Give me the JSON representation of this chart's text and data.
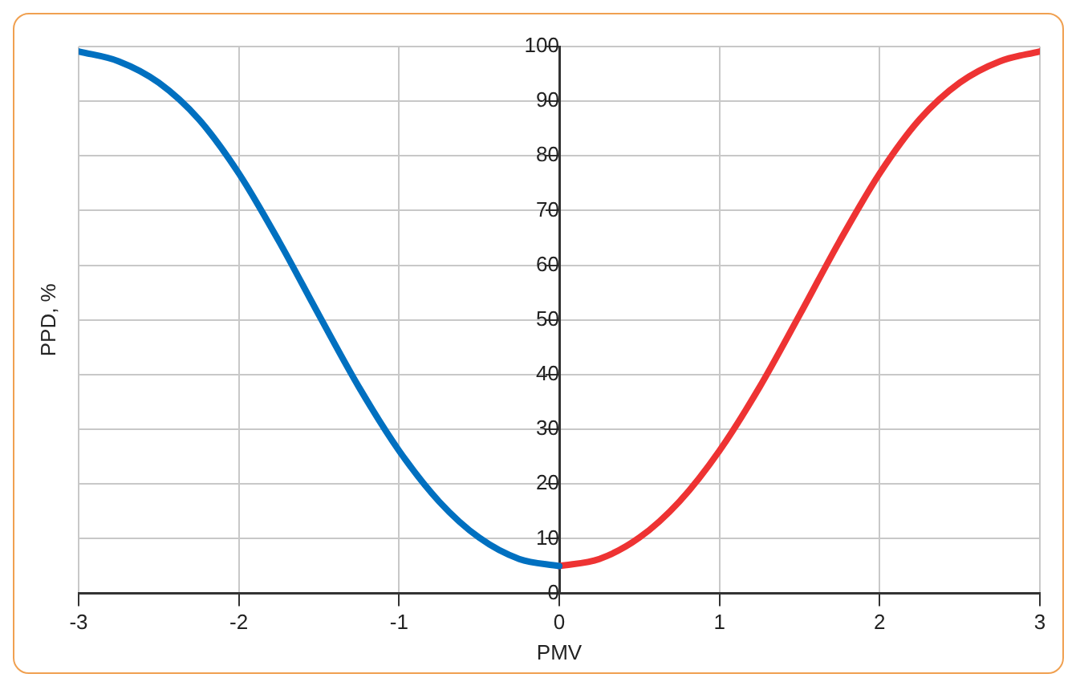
{
  "chart_data": {
    "type": "line",
    "xlabel": "PMV",
    "ylabel": "PPD, %",
    "xlim": [
      -3,
      3
    ],
    "ylim": [
      0,
      100
    ],
    "xticks": [
      -3,
      -2,
      -1,
      0,
      1,
      2,
      3
    ],
    "yticks": [
      0,
      10,
      20,
      30,
      40,
      50,
      60,
      70,
      80,
      90,
      100
    ],
    "grid": true,
    "marker": "none",
    "line_style": "solid",
    "series": [
      {
        "color": "#0070c0",
        "x": [
          -3,
          -2.75,
          -2.5,
          -2.25,
          -2,
          -1.75,
          -1.5,
          -1.25,
          -1,
          -0.75,
          -0.5,
          -0.25,
          0
        ],
        "values": [
          99.1,
          97.3,
          93.4,
          86.7,
          76.8,
          64.4,
          50.9,
          37.7,
          26.1,
          16.8,
          10.2,
          6.3,
          5
        ]
      },
      {
        "color": "#ee3333",
        "x": [
          0,
          0.25,
          0.5,
          0.75,
          1,
          1.25,
          1.5,
          1.75,
          2,
          2.25,
          2.5,
          2.75,
          3
        ],
        "values": [
          5,
          6.3,
          10.2,
          16.8,
          26.1,
          37.7,
          50.9,
          64.4,
          76.8,
          86.7,
          93.4,
          97.3,
          99.1
        ]
      }
    ]
  }
}
